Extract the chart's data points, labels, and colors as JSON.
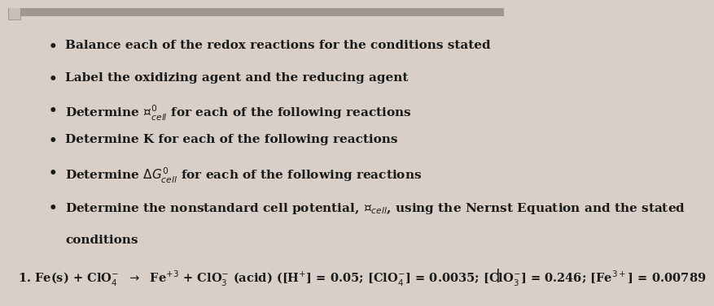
{
  "background_color": "#d8d0c8",
  "text_color": "#1a1a1a",
  "title_bar_color": "#b0a898",
  "bullet_points": [
    "Balance each of the redox reactions for the conditions stated",
    "Label the oxidizing agent and the reducing agent",
    "Determine $\\mathcal{E}^{0}_{cell}$ for each of the following reactions",
    "Determine K for each of the following reactions",
    "Determine $\\Delta G^{0}_{cell}$ for each of the following reactions",
    "Determine the nonstandard cell potential, $\\mathcal{E}_{cell}$, using the Nernst Equation and the stated\nconditions"
  ],
  "reaction_line": "1. Fe(s) + ClO$_{4}^{-}$  $\\rightarrow$  Fe$^{+3}$ + ClO$_{3}^{-}$ (acid) ([H$^{+}$] = 0.05; [ClO$_{4}^{-}$] = 0.0035; [ClO$_{3}^{-}$] = 0.246; [Fe$^{3+}$] = 0.00789",
  "font_size_bullets": 11,
  "font_size_reaction": 10.5
}
